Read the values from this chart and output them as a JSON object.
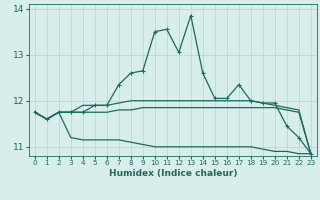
{
  "xlabel": "Humidex (Indice chaleur)",
  "x": [
    0,
    1,
    2,
    3,
    4,
    5,
    6,
    7,
    8,
    9,
    10,
    11,
    12,
    13,
    14,
    15,
    16,
    17,
    18,
    19,
    20,
    21,
    22,
    23
  ],
  "line_spike": [
    11.75,
    11.6,
    11.75,
    11.75,
    11.75,
    11.9,
    11.9,
    12.35,
    12.6,
    12.65,
    13.5,
    13.55,
    13.05,
    13.85,
    12.6,
    12.05,
    12.05,
    12.35,
    12.0,
    11.95,
    11.95,
    11.45,
    11.2,
    10.85
  ],
  "line_mid_upper": [
    11.75,
    11.6,
    11.75,
    11.75,
    11.9,
    11.9,
    11.9,
    11.95,
    12.0,
    12.0,
    12.0,
    12.0,
    12.0,
    12.0,
    12.0,
    12.0,
    12.0,
    12.0,
    12.0,
    11.95,
    11.9,
    11.85,
    11.8,
    10.85
  ],
  "line_mid_lower": [
    11.75,
    11.6,
    11.75,
    11.75,
    11.75,
    11.75,
    11.75,
    11.8,
    11.8,
    11.85,
    11.85,
    11.85,
    11.85,
    11.85,
    11.85,
    11.85,
    11.85,
    11.85,
    11.85,
    11.85,
    11.85,
    11.8,
    11.75,
    10.85
  ],
  "line_bottom": [
    11.75,
    11.6,
    11.75,
    11.2,
    11.15,
    11.15,
    11.15,
    11.15,
    11.1,
    11.05,
    11.0,
    11.0,
    11.0,
    11.0,
    11.0,
    11.0,
    11.0,
    11.0,
    11.0,
    10.95,
    10.9,
    10.9,
    10.85,
    10.85
  ],
  "ylim": [
    10.8,
    14.1
  ],
  "xlim": [
    -0.5,
    23.5
  ],
  "yticks": [
    11,
    12,
    13,
    14
  ],
  "xticks": [
    0,
    1,
    2,
    3,
    4,
    5,
    6,
    7,
    8,
    9,
    10,
    11,
    12,
    13,
    14,
    15,
    16,
    17,
    18,
    19,
    20,
    21,
    22,
    23
  ],
  "bg_color": "#d8eeeb",
  "line_color": "#1a6b5e",
  "grid_color": "#b8d8d4",
  "tick_color": "#1a6b5e"
}
